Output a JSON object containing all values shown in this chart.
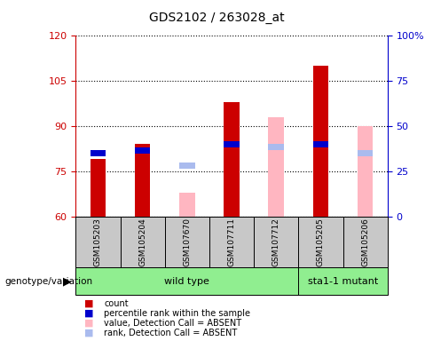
{
  "title": "GDS2102 / 263028_at",
  "samples": [
    "GSM105203",
    "GSM105204",
    "GSM107670",
    "GSM107711",
    "GSM107712",
    "GSM105205",
    "GSM105206"
  ],
  "ylim_left": [
    60,
    120
  ],
  "ylim_right": [
    0,
    100
  ],
  "yticks_left": [
    60,
    75,
    90,
    105,
    120
  ],
  "yticks_right": [
    0,
    25,
    50,
    75,
    100
  ],
  "ytick_labels_right": [
    "0",
    "25",
    "50",
    "75",
    "100%"
  ],
  "count_values": [
    79,
    84,
    null,
    98,
    null,
    110,
    null
  ],
  "percentile_rank_values": [
    80,
    81,
    null,
    83,
    null,
    83,
    null
  ],
  "value_absent": [
    null,
    null,
    68,
    null,
    93,
    null,
    90
  ],
  "rank_absent": [
    null,
    null,
    76,
    null,
    82,
    null,
    80
  ],
  "bar_width": 0.35,
  "colors": {
    "count": "#CC0000",
    "percentile_rank": "#0000CC",
    "value_absent": "#FFB6C1",
    "rank_absent": "#AABBEE",
    "tick_color_left": "#CC0000",
    "tick_color_right": "#0000CC",
    "cell_bg": "#C8C8C8",
    "wildtype_bg": "#90EE90",
    "mutant_bg": "#90EE90"
  },
  "legend_items": [
    {
      "label": "count",
      "color": "#CC0000"
    },
    {
      "label": "percentile rank within the sample",
      "color": "#0000CC"
    },
    {
      "label": "value, Detection Call = ABSENT",
      "color": "#FFB6C1"
    },
    {
      "label": "rank, Detection Call = ABSENT",
      "color": "#AABBEE"
    }
  ],
  "wildtype_cols": 5,
  "mutant_cols": 2,
  "n_samples": 7
}
